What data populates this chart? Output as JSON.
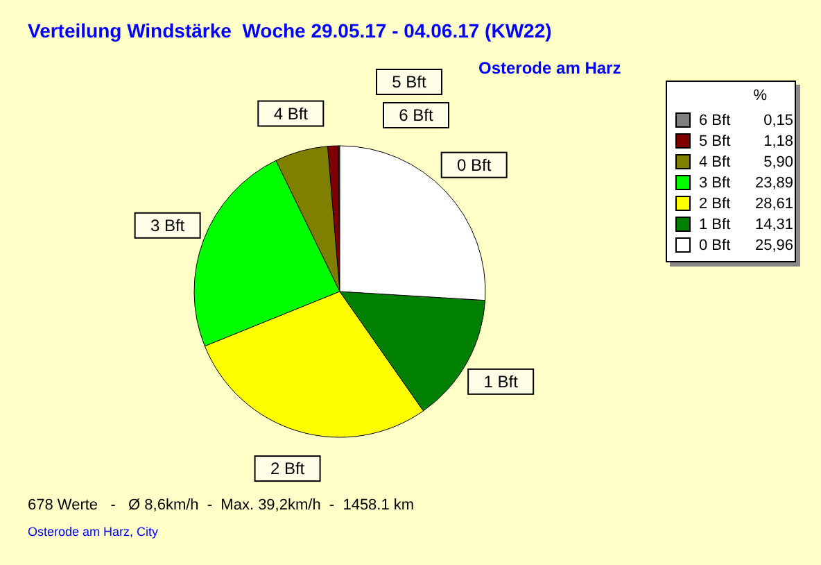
{
  "chart_data": {
    "type": "pie",
    "title": "Verteilung Windstärke  Woche 29.05.17 - 04.06.17 (KW22)",
    "subtitle": "Osterode am Harz",
    "legend_title": "%",
    "categories": [
      "6 Bft",
      "5 Bft",
      "4 Bft",
      "3 Bft",
      "2 Bft",
      "1 Bft",
      "0 Bft"
    ],
    "values": [
      0.15,
      1.18,
      5.9,
      23.89,
      28.61,
      14.31,
      25.96
    ],
    "value_labels": [
      "0,15",
      "1,18",
      "5,90",
      "23,89",
      "28,61",
      "14,31",
      "25,96"
    ],
    "colors": [
      "#808080",
      "#800000",
      "#808000",
      "#00ff00",
      "#ffff00",
      "#008000",
      "#ffffff"
    ],
    "legend": "top right",
    "annotations": [
      "678 Werte   -   Ø 8,6km/h  -  Max. 39,2km/h  -  1458.1 km",
      "Osterode am Harz, City"
    ]
  }
}
